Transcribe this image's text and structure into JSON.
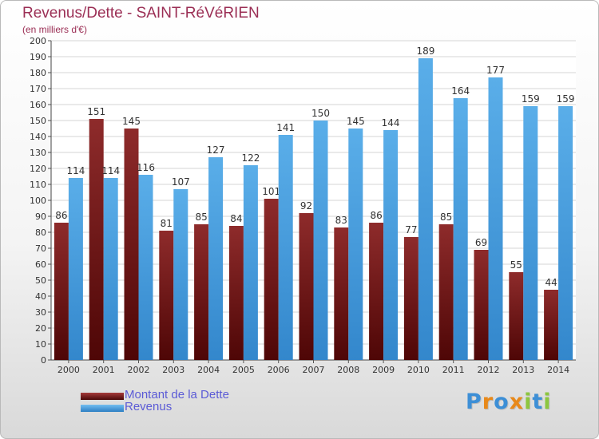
{
  "header": {
    "title": "Revenus/Dette - SAINT-RéVéRIEN",
    "subtitle": "(en milliers d'€)"
  },
  "chart_data": {
    "type": "bar",
    "title": "Revenus/Dette - SAINT-RéVéRIEN",
    "subtitle": "(en milliers d'€)",
    "categories": [
      "2000",
      "2001",
      "2002",
      "2003",
      "2004",
      "2005",
      "2006",
      "2007",
      "2008",
      "2009",
      "2010",
      "2011",
      "2012",
      "2013",
      "2014"
    ],
    "series": [
      {
        "name": "Montant de la Dette",
        "color": "#7d1d1d",
        "values": [
          86,
          151,
          145,
          81,
          85,
          84,
          101,
          92,
          83,
          86,
          77,
          85,
          69,
          55,
          44
        ]
      },
      {
        "name": "Revenus",
        "color": "#4aa3e6",
        "values": [
          114,
          114,
          116,
          107,
          127,
          122,
          141,
          150,
          145,
          144,
          189,
          164,
          177,
          159,
          159
        ]
      }
    ],
    "yticks": [
      0,
      10,
      20,
      30,
      40,
      50,
      60,
      70,
      80,
      90,
      100,
      110,
      120,
      130,
      140,
      150,
      160,
      170,
      180,
      190,
      200
    ],
    "ylim": [
      0,
      200
    ],
    "grid": true,
    "legend_position": "bottom-left"
  },
  "legend": {
    "items": [
      {
        "label": "Montant de la Dette",
        "color": "#7d1d1d"
      },
      {
        "label": "Revenus",
        "color": "#4aa3e6"
      }
    ]
  },
  "logo": {
    "text": "Proxiti",
    "letter_colors": [
      "#3d8fd6",
      "#e8891a",
      "#3d8fd6",
      "#e8891a",
      "#8dc63f",
      "#3d8fd6",
      "#8dc63f"
    ]
  }
}
